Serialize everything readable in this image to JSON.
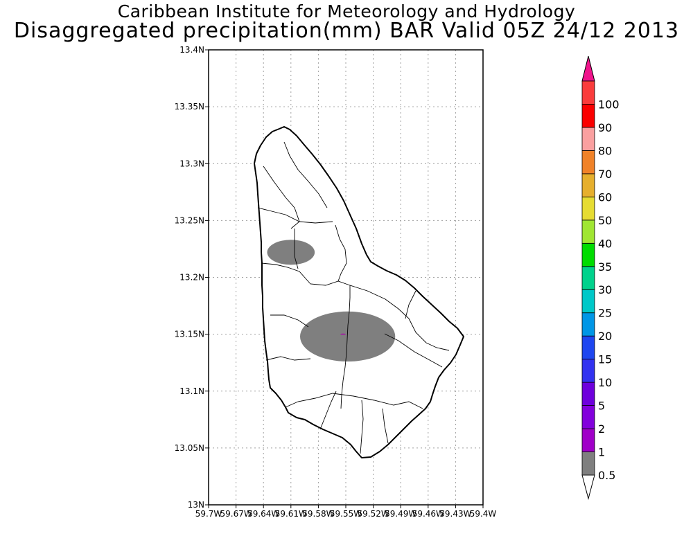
{
  "title": {
    "line1": "Caribbean Institute for Meteorology and Hydrology",
    "line2": "Disaggregated precipitation(mm) BAR Valid 05Z 24/12 2013"
  },
  "map": {
    "lat_range": [
      13.0,
      13.4
    ],
    "lon_range": [
      -59.7,
      -59.4
    ],
    "grid": true,
    "lat_ticks": [
      {
        "v": 13.0,
        "label": "13N"
      },
      {
        "v": 13.05,
        "label": "13.05N"
      },
      {
        "v": 13.1,
        "label": "13.1N"
      },
      {
        "v": 13.15,
        "label": "13.15N"
      },
      {
        "v": 13.2,
        "label": "13.2N"
      },
      {
        "v": 13.25,
        "label": "13.25N"
      },
      {
        "v": 13.3,
        "label": "13.3N"
      },
      {
        "v": 13.35,
        "label": "13.35N"
      },
      {
        "v": 13.4,
        "label": "13.4N"
      }
    ],
    "lon_ticks": [
      {
        "v": -59.7,
        "label": "59.7W"
      },
      {
        "v": -59.67,
        "label": "59.67W"
      },
      {
        "v": -59.64,
        "label": "59.64W"
      },
      {
        "v": -59.61,
        "label": "59.61W"
      },
      {
        "v": -59.58,
        "label": "59.58W"
      },
      {
        "v": -59.55,
        "label": "59.55W"
      },
      {
        "v": -59.52,
        "label": "59.52W"
      },
      {
        "v": -59.49,
        "label": "59.49W"
      },
      {
        "v": -59.46,
        "label": "59.46W"
      },
      {
        "v": -59.43,
        "label": "59.43W"
      },
      {
        "v": -59.4,
        "label": "59.4W"
      }
    ],
    "precip_areas": [
      {
        "lon": -59.61,
        "lat": 13.222,
        "rlon": 0.026,
        "rlat": 0.011,
        "value_mm": "0.5-1",
        "color": "#7f7f7f"
      },
      {
        "lon": -59.548,
        "lat": 13.148,
        "rlon": 0.052,
        "rlat": 0.022,
        "value_mm": "0.5-1",
        "color": "#7f7f7f"
      },
      {
        "lon": -59.553,
        "lat": 13.15,
        "rlon": 0.003,
        "rlat": 0.0006,
        "value_mm": "1-2",
        "color": "#a020a0"
      }
    ],
    "colors": {
      "grid": "#a0a0a0",
      "coast": "#000000",
      "land": "#ffffff"
    }
  },
  "colorbar": {
    "labels": [
      "0.5",
      "1",
      "2",
      "5",
      "10",
      "15",
      "20",
      "25",
      "30",
      "35",
      "40",
      "50",
      "60",
      "70",
      "80",
      "90",
      "100"
    ],
    "colors": [
      "#7f7f7f",
      "#a000c8",
      "#8200dc",
      "#6e00dc",
      "#3232f0",
      "#1e46f0",
      "#0096e6",
      "#00c8c8",
      "#00d28c",
      "#00dc00",
      "#a0e632",
      "#e6dc32",
      "#e6af2d",
      "#f08228",
      "#faa0a0",
      "#fa0000",
      "#fa3c3c"
    ],
    "top_arrow_color": "#f0148c",
    "bottom_arrow_color": "#ffffff"
  }
}
